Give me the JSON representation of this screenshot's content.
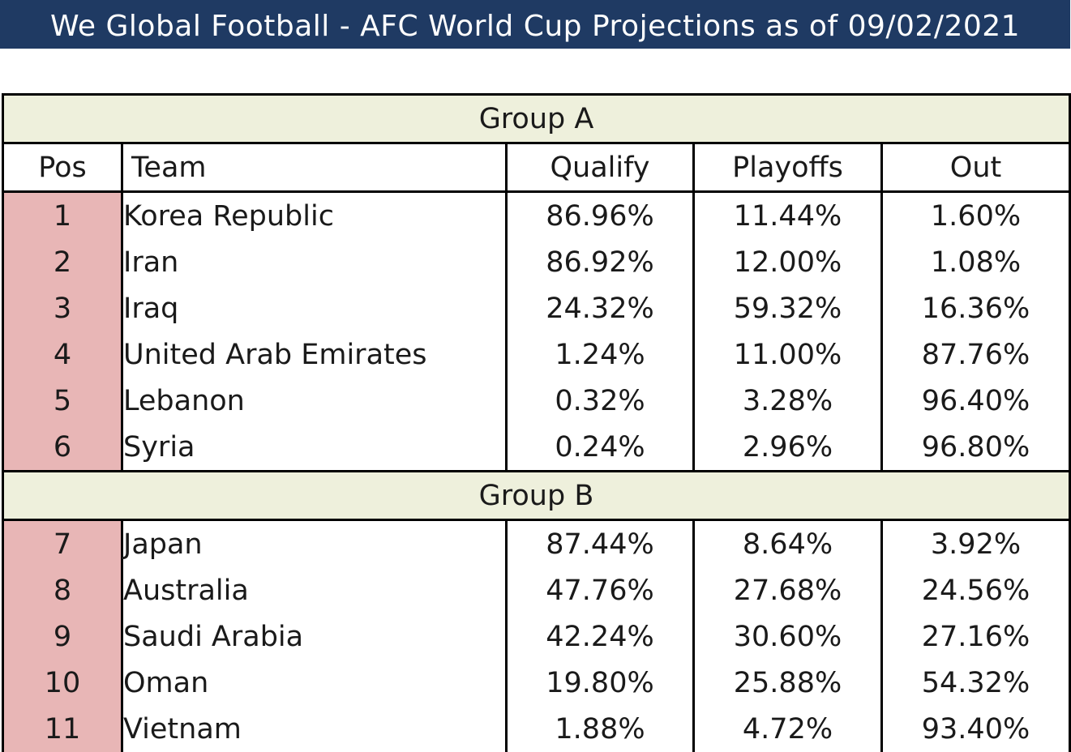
{
  "title": "We Global Football - AFC World Cup Projections as of 09/02/2021",
  "columns": {
    "pos": "Pos",
    "team": "Team",
    "qualify": "Qualify",
    "playoffs": "Playoffs",
    "out": "Out"
  },
  "colors": {
    "title_bg": "#1f3a63",
    "group_bg": "#eef0dc",
    "pos_bg": "#e8b6b6"
  },
  "groups": [
    {
      "name": "Group A",
      "rows": [
        {
          "pos": "1",
          "team": "Korea Republic",
          "qualify": "86.96%",
          "playoffs": "11.44%",
          "out": "1.60%"
        },
        {
          "pos": "2",
          "team": "Iran",
          "qualify": "86.92%",
          "playoffs": "12.00%",
          "out": "1.08%"
        },
        {
          "pos": "3",
          "team": "Iraq",
          "qualify": "24.32%",
          "playoffs": "59.32%",
          "out": "16.36%"
        },
        {
          "pos": "4",
          "team": "United Arab Emirates",
          "qualify": "1.24%",
          "playoffs": "11.00%",
          "out": "87.76%"
        },
        {
          "pos": "5",
          "team": "Lebanon",
          "qualify": "0.32%",
          "playoffs": "3.28%",
          "out": "96.40%"
        },
        {
          "pos": "6",
          "team": "Syria",
          "qualify": "0.24%",
          "playoffs": "2.96%",
          "out": "96.80%"
        }
      ]
    },
    {
      "name": "Group B",
      "rows": [
        {
          "pos": "7",
          "team": "Japan",
          "qualify": "87.44%",
          "playoffs": "8.64%",
          "out": "3.92%"
        },
        {
          "pos": "8",
          "team": "Australia",
          "qualify": "47.76%",
          "playoffs": "27.68%",
          "out": "24.56%"
        },
        {
          "pos": "9",
          "team": "Saudi Arabia",
          "qualify": "42.24%",
          "playoffs": "30.60%",
          "out": "27.16%"
        },
        {
          "pos": "10",
          "team": "Oman",
          "qualify": "19.80%",
          "playoffs": "25.88%",
          "out": "54.32%"
        },
        {
          "pos": "11",
          "team": "Vietnam",
          "qualify": "1.88%",
          "playoffs": "4.72%",
          "out": "93.40%"
        }
      ]
    }
  ]
}
